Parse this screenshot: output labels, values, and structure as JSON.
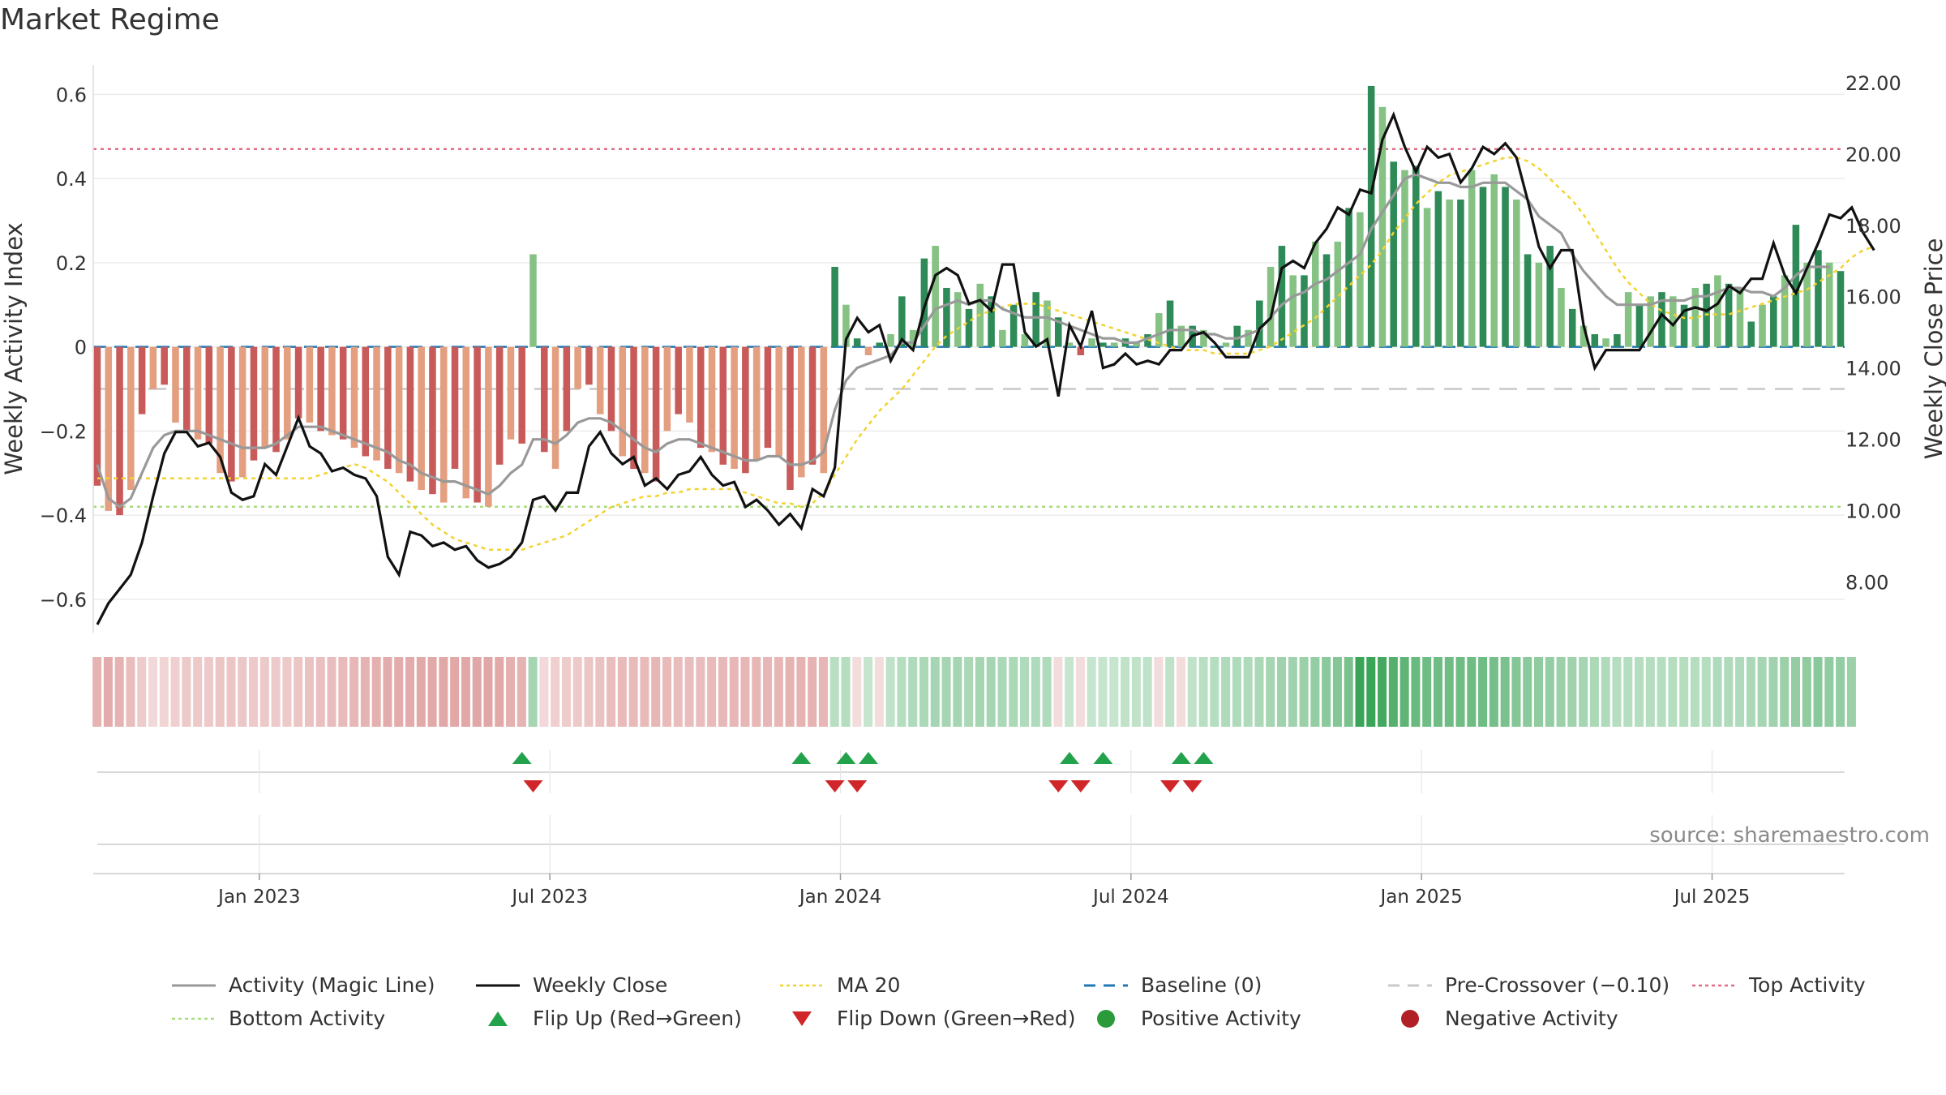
{
  "title": "Market Regime",
  "source": "source: sharemaestro.com",
  "colors": {
    "magic_line": "#999999",
    "weekly_close": "#111111",
    "ma20": "#f2d330",
    "baseline": "#1f77b4",
    "pre_crossover": "#c8c8c8",
    "top_activity": "#e06c86",
    "bottom_activity": "#a8dc7a",
    "flip_up": "#22a24a",
    "flip_down": "#d0262a",
    "positive": "#2a9a3a",
    "negative": "#b02025",
    "bar_pos_dark": "#2e8b57",
    "bar_pos_light": "#86c283",
    "bar_neg_dark": "#c85a5a",
    "bar_neg_light": "#e39f80"
  },
  "legend": [
    {
      "label": "Activity (Magic Line)",
      "icon": "solid-line",
      "color": "#999999"
    },
    {
      "label": "Weekly Close",
      "icon": "solid-line",
      "color": "#111111"
    },
    {
      "label": "MA 20",
      "icon": "dotted-line",
      "color": "#f2d330"
    },
    {
      "label": "Baseline (0)",
      "icon": "dashed-line",
      "color": "#1f77b4"
    },
    {
      "label": "Pre-Crossover (−0.10)",
      "icon": "dashed-line",
      "color": "#c8c8c8"
    },
    {
      "label": "Top Activity",
      "icon": "dotted-line",
      "color": "#e06c86"
    },
    {
      "label": "Bottom Activity",
      "icon": "dotted-line",
      "color": "#a8dc7a"
    },
    {
      "label": "Flip Up (Red→Green)",
      "icon": "triangle-up",
      "color": "#22a24a"
    },
    {
      "label": "Flip Down (Green→Red)",
      "icon": "triangle-down",
      "color": "#d0262a"
    },
    {
      "label": "Positive Activity",
      "icon": "dot",
      "color": "#2a9a3a"
    },
    {
      "label": "Negative Activity",
      "icon": "dot",
      "color": "#b02025"
    }
  ],
  "chart_data": {
    "type": "bar",
    "title": "Market Regime",
    "ylabel": "Weekly Activity Index",
    "y2label": "Weekly Close Price",
    "ylim": [
      -0.66,
      0.67
    ],
    "y2lim": [
      6.8,
      22.5
    ],
    "yticks": [
      "−0.6",
      "−0.4",
      "−0.2",
      "0",
      "0.2",
      "0.4",
      "0.6"
    ],
    "y2ticks": [
      "8.00",
      "10.00",
      "12.00",
      "14.00",
      "16.00",
      "18.00",
      "20.00",
      "22.00"
    ],
    "xticks": [
      "Jan 2023",
      "Jul 2023",
      "Jan 2024",
      "Jul 2024",
      "Jan 2025",
      "Jul 2025"
    ],
    "x_weeks_range": [
      0,
      156
    ],
    "x_tick_weeks": [
      14.5,
      40.5,
      66.5,
      92.5,
      118.5,
      144.5
    ],
    "hlines": {
      "baseline": 0,
      "pre_crossover": -0.1,
      "top_activity": 0.47,
      "bottom_activity": -0.38
    },
    "activity": [
      -0.33,
      -0.39,
      -0.4,
      -0.34,
      -0.16,
      -0.1,
      -0.09,
      -0.18,
      -0.2,
      -0.22,
      -0.23,
      -0.3,
      -0.32,
      -0.31,
      -0.27,
      -0.24,
      -0.25,
      -0.22,
      -0.17,
      -0.18,
      -0.2,
      -0.21,
      -0.22,
      -0.24,
      -0.26,
      -0.27,
      -0.29,
      -0.3,
      -0.32,
      -0.34,
      -0.35,
      -0.37,
      -0.29,
      -0.36,
      -0.37,
      -0.38,
      -0.28,
      -0.22,
      -0.23,
      0.22,
      -0.25,
      -0.29,
      -0.2,
      -0.1,
      -0.09,
      -0.16,
      -0.2,
      -0.26,
      -0.29,
      -0.3,
      -0.32,
      -0.2,
      -0.16,
      -0.18,
      -0.24,
      -0.25,
      -0.28,
      -0.29,
      -0.3,
      -0.27,
      -0.24,
      -0.26,
      -0.34,
      -0.31,
      -0.28,
      -0.3,
      0.19,
      0.1,
      0.02,
      -0.02,
      0.01,
      0.03,
      0.12,
      0.04,
      0.21,
      0.24,
      0.14,
      0.13,
      0.09,
      0.15,
      0.12,
      0.04,
      0.1,
      0.03,
      0.13,
      0.11,
      0.07,
      0.01,
      -0.02,
      0.02,
      0.01,
      0.01,
      0.02,
      0.01,
      0.03,
      0.08,
      0.11,
      0.05,
      0.05,
      0.04,
      0.0,
      0.01,
      0.05,
      0.04,
      0.11,
      0.19,
      0.24,
      0.17,
      0.17,
      0.25,
      0.22,
      0.25,
      0.33,
      0.32,
      0.62,
      0.57,
      0.44,
      0.42,
      0.43,
      0.33,
      0.37,
      0.35,
      0.35,
      0.42,
      0.38,
      0.41,
      0.38,
      0.35,
      0.22,
      0.2,
      0.24,
      0.14,
      0.09,
      0.05,
      0.03,
      0.02,
      0.03,
      0.13,
      0.1,
      0.12,
      0.13,
      0.12,
      0.1,
      0.14,
      0.15,
      0.17,
      0.15,
      0.14,
      0.06,
      0.1,
      0.12,
      0.17,
      0.29,
      0.2,
      0.23,
      0.2,
      0.18
    ],
    "magic_line": [
      -0.28,
      -0.36,
      -0.38,
      -0.36,
      -0.3,
      -0.24,
      -0.21,
      -0.2,
      -0.2,
      -0.2,
      -0.21,
      -0.22,
      -0.23,
      -0.24,
      -0.24,
      -0.24,
      -0.23,
      -0.21,
      -0.19,
      -0.19,
      -0.19,
      -0.2,
      -0.21,
      -0.22,
      -0.23,
      -0.24,
      -0.25,
      -0.27,
      -0.28,
      -0.3,
      -0.31,
      -0.32,
      -0.32,
      -0.33,
      -0.34,
      -0.35,
      -0.33,
      -0.3,
      -0.28,
      -0.22,
      -0.22,
      -0.23,
      -0.21,
      -0.18,
      -0.17,
      -0.17,
      -0.18,
      -0.2,
      -0.22,
      -0.24,
      -0.25,
      -0.23,
      -0.22,
      -0.22,
      -0.23,
      -0.24,
      -0.25,
      -0.26,
      -0.27,
      -0.27,
      -0.26,
      -0.26,
      -0.28,
      -0.28,
      -0.27,
      -0.25,
      -0.15,
      -0.08,
      -0.05,
      -0.04,
      -0.03,
      -0.02,
      0.01,
      0.01,
      0.05,
      0.09,
      0.1,
      0.11,
      0.1,
      0.11,
      0.11,
      0.09,
      0.08,
      0.07,
      0.07,
      0.07,
      0.06,
      0.05,
      0.04,
      0.03,
      0.02,
      0.02,
      0.01,
      0.01,
      0.02,
      0.03,
      0.04,
      0.04,
      0.04,
      0.03,
      0.03,
      0.02,
      0.02,
      0.03,
      0.04,
      0.07,
      0.1,
      0.12,
      0.13,
      0.15,
      0.16,
      0.18,
      0.2,
      0.22,
      0.28,
      0.32,
      0.36,
      0.4,
      0.41,
      0.4,
      0.39,
      0.39,
      0.38,
      0.38,
      0.39,
      0.39,
      0.39,
      0.37,
      0.35,
      0.31,
      0.29,
      0.27,
      0.22,
      0.18,
      0.15,
      0.12,
      0.1,
      0.1,
      0.1,
      0.1,
      0.11,
      0.11,
      0.11,
      0.12,
      0.12,
      0.13,
      0.14,
      0.14,
      0.13,
      0.13,
      0.12,
      0.14,
      0.17,
      0.19,
      0.19,
      0.19
    ],
    "weekly_close": [
      6.8,
      7.4,
      7.8,
      8.2,
      9.1,
      10.4,
      11.6,
      12.2,
      12.2,
      11.8,
      11.9,
      11.5,
      10.5,
      10.3,
      10.4,
      11.3,
      11.0,
      11.8,
      12.6,
      11.8,
      11.6,
      11.1,
      11.2,
      11.0,
      10.9,
      10.4,
      8.7,
      8.2,
      9.4,
      9.3,
      9.0,
      9.1,
      8.9,
      9.0,
      8.6,
      8.4,
      8.5,
      8.7,
      9.1,
      10.3,
      10.4,
      10.0,
      10.5,
      10.5,
      11.8,
      12.2,
      11.6,
      11.3,
      11.5,
      10.7,
      10.9,
      10.6,
      11.0,
      11.1,
      11.5,
      11.0,
      10.7,
      10.8,
      10.1,
      10.3,
      10.0,
      9.6,
      9.9,
      9.5,
      10.6,
      10.4,
      11.2,
      14.8,
      15.4,
      15.0,
      15.2,
      14.2,
      14.8,
      14.5,
      15.7,
      16.6,
      16.8,
      16.6,
      15.8,
      15.9,
      15.6,
      16.9,
      16.9,
      15.0,
      14.6,
      14.8,
      13.2,
      15.2,
      14.6,
      15.6,
      14.0,
      14.1,
      14.4,
      14.1,
      14.2,
      14.1,
      14.5,
      14.5,
      14.9,
      15.0,
      14.7,
      14.3,
      14.3,
      14.3,
      15.1,
      15.4,
      16.8,
      17.0,
      16.8,
      17.5,
      17.9,
      18.5,
      18.3,
      19.0,
      18.9,
      20.4,
      21.1,
      20.2,
      19.5,
      20.2,
      19.9,
      20.0,
      19.2,
      19.6,
      20.2,
      20.0,
      20.3,
      19.9,
      18.7,
      17.4,
      16.8,
      17.3,
      17.3,
      15.2,
      14.0,
      14.5,
      14.5,
      14.5,
      14.5,
      15.0,
      15.5,
      15.2,
      15.6,
      15.7,
      15.6,
      15.8,
      16.3,
      16.1,
      16.5,
      16.5,
      17.5,
      16.6,
      16.1,
      16.8,
      17.5,
      18.3,
      18.2,
      18.5,
      17.8,
      17.3
    ],
    "ma20": [
      10.9,
      10.9,
      10.9,
      10.9,
      10.9,
      10.9,
      10.9,
      10.9,
      10.9,
      10.9,
      10.9,
      10.9,
      10.9,
      10.9,
      10.9,
      10.9,
      10.9,
      10.9,
      10.9,
      10.9,
      11.0,
      11.1,
      11.2,
      11.3,
      11.2,
      11.0,
      10.8,
      10.5,
      10.2,
      9.9,
      9.6,
      9.4,
      9.2,
      9.1,
      9.0,
      8.9,
      8.9,
      8.9,
      8.9,
      9.0,
      9.1,
      9.2,
      9.3,
      9.5,
      9.7,
      9.9,
      10.1,
      10.2,
      10.3,
      10.4,
      10.4,
      10.5,
      10.5,
      10.6,
      10.6,
      10.6,
      10.6,
      10.6,
      10.5,
      10.4,
      10.3,
      10.2,
      10.2,
      10.1,
      10.2,
      10.5,
      11.0,
      11.5,
      12.0,
      12.4,
      12.8,
      13.1,
      13.4,
      13.8,
      14.2,
      14.6,
      14.9,
      15.1,
      15.3,
      15.5,
      15.6,
      15.7,
      15.8,
      15.8,
      15.8,
      15.7,
      15.6,
      15.5,
      15.4,
      15.3,
      15.2,
      15.1,
      15.0,
      14.9,
      14.8,
      14.7,
      14.6,
      14.5,
      14.5,
      14.5,
      14.4,
      14.4,
      14.4,
      14.4,
      14.5,
      14.6,
      14.8,
      15.0,
      15.2,
      15.4,
      15.7,
      16.0,
      16.3,
      16.6,
      16.9,
      17.3,
      17.8,
      18.2,
      18.6,
      18.9,
      19.2,
      19.4,
      19.5,
      19.6,
      19.7,
      19.8,
      19.9,
      19.9,
      19.8,
      19.6,
      19.3,
      19.0,
      18.7,
      18.3,
      17.8,
      17.3,
      16.8,
      16.4,
      16.1,
      15.8,
      15.6,
      15.5,
      15.4,
      15.4,
      15.5,
      15.5,
      15.5,
      15.6,
      15.7,
      15.8,
      15.9,
      16.0,
      16.1,
      16.2,
      16.4,
      16.6,
      16.8,
      17.1,
      17.3,
      17.4
    ],
    "regime_band": [
      -0.28,
      -0.32,
      -0.28,
      -0.22,
      -0.14,
      -0.08,
      -0.1,
      -0.12,
      -0.15,
      -0.16,
      -0.16,
      -0.18,
      -0.18,
      -0.17,
      -0.16,
      -0.15,
      -0.15,
      -0.16,
      -0.18,
      -0.2,
      -0.21,
      -0.22,
      -0.24,
      -0.26,
      -0.28,
      -0.3,
      -0.32,
      -0.32,
      -0.32,
      -0.33,
      -0.33,
      -0.34,
      -0.34,
      -0.34,
      -0.35,
      -0.35,
      -0.33,
      -0.3,
      -0.28,
      0.2,
      -0.08,
      -0.12,
      -0.14,
      -0.16,
      -0.18,
      -0.2,
      -0.22,
      -0.24,
      -0.24,
      -0.24,
      -0.26,
      -0.24,
      -0.22,
      -0.22,
      -0.22,
      -0.24,
      -0.25,
      -0.26,
      -0.26,
      -0.26,
      -0.26,
      -0.26,
      -0.28,
      -0.28,
      -0.28,
      -0.26,
      0.12,
      0.14,
      -0.05,
      0.08,
      -0.05,
      0.1,
      0.14,
      0.16,
      0.18,
      0.2,
      0.2,
      0.2,
      0.18,
      0.2,
      0.2,
      0.18,
      0.18,
      0.16,
      0.16,
      0.16,
      -0.05,
      0.08,
      -0.05,
      0.08,
      0.08,
      0.08,
      0.1,
      0.1,
      0.1,
      -0.05,
      0.1,
      -0.05,
      0.1,
      0.12,
      0.14,
      0.16,
      0.16,
      0.16,
      0.18,
      0.2,
      0.22,
      0.22,
      0.24,
      0.26,
      0.3,
      0.32,
      0.36,
      0.6,
      0.6,
      0.56,
      0.5,
      0.46,
      0.42,
      0.4,
      0.4,
      0.4,
      0.4,
      0.4,
      0.4,
      0.38,
      0.36,
      0.32,
      0.3,
      0.28,
      0.26,
      0.24,
      0.22,
      0.2,
      0.18,
      0.16,
      0.14,
      0.14,
      0.14,
      0.14,
      0.14,
      0.14,
      0.14,
      0.14,
      0.14,
      0.16,
      0.16,
      0.16,
      0.18,
      0.2,
      0.22,
      0.24,
      0.26,
      0.28,
      0.3,
      0.28,
      0.26,
      0.24
    ],
    "flip_up_weeks": [
      38,
      63,
      67,
      69,
      87,
      90,
      97,
      99
    ],
    "flip_down_weeks": [
      39,
      66,
      68,
      86,
      88,
      96,
      98
    ]
  }
}
